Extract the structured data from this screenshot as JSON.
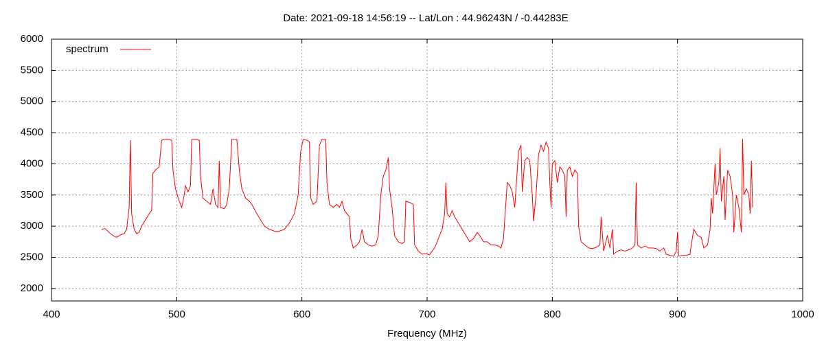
{
  "chart_data": {
    "type": "line",
    "title": "Date: 2021-09-18 14:56:19  --  Lat/Lon : 44.96243N / -0.44283E",
    "xlabel": "Frequency (MHz)",
    "xlim": [
      400,
      1000
    ],
    "xticks": [
      400,
      500,
      600,
      700,
      800,
      900,
      1000
    ],
    "ylim": [
      1800,
      6000
    ],
    "yticks": [
      2000,
      2500,
      3000,
      3500,
      4000,
      4500,
      5000,
      5500,
      6000
    ],
    "grid": true,
    "legend": "top-left",
    "x": [
      440,
      443,
      446,
      449,
      452,
      455,
      458,
      460,
      462,
      463,
      464,
      466,
      468,
      470,
      472,
      475,
      478,
      480,
      481,
      483,
      486,
      488,
      490,
      494,
      496,
      497,
      499,
      502,
      504,
      506,
      507,
      509,
      511,
      512,
      515,
      518,
      519,
      521,
      524,
      527,
      529,
      531,
      533,
      534,
      535,
      538,
      540,
      542,
      544,
      548,
      550,
      552,
      555,
      558,
      560,
      564,
      567,
      570,
      574,
      578,
      582,
      586,
      590,
      594,
      597,
      599,
      601,
      604,
      606,
      607,
      609,
      612,
      614,
      616,
      619,
      620,
      622,
      625,
      628,
      630,
      632,
      634,
      636,
      638,
      639,
      641,
      644,
      646,
      648,
      650,
      653,
      656,
      659,
      661,
      663,
      665,
      667,
      669,
      670,
      672,
      674,
      677,
      680,
      682,
      683,
      686,
      689,
      690,
      693,
      696,
      699,
      702,
      704,
      706,
      709,
      712,
      714,
      715,
      716,
      718,
      720,
      722,
      725,
      728,
      731,
      734,
      737,
      740,
      742,
      745,
      748,
      751,
      754,
      757,
      759,
      761,
      763,
      764,
      766,
      768,
      770,
      771,
      773,
      775,
      776,
      778,
      780,
      782,
      784,
      785,
      787,
      789,
      791,
      793,
      795,
      797,
      798,
      799,
      800,
      802,
      804,
      806,
      808,
      810,
      811,
      812,
      814,
      816,
      818,
      820,
      821,
      823,
      826,
      829,
      832,
      835,
      838,
      839,
      841,
      844,
      846,
      848,
      849,
      852,
      855,
      858,
      861,
      864,
      866,
      867,
      868,
      871,
      874,
      877,
      880,
      883,
      886,
      889,
      891,
      894,
      897,
      899,
      900,
      901,
      904,
      907,
      910,
      911,
      913,
      916,
      919,
      921,
      924,
      926,
      927,
      928,
      930,
      931,
      933,
      934,
      935,
      937,
      938,
      940,
      942,
      944,
      945,
      947,
      949,
      951,
      952,
      953,
      955,
      957,
      958,
      959,
      960
    ],
    "series": [
      {
        "name": "spectrum",
        "color": "#ff0000",
        "values": [
          2950,
          2960,
          2900,
          2850,
          2820,
          2860,
          2880,
          2950,
          3300,
          4380,
          3200,
          2950,
          2880,
          2900,
          3000,
          3100,
          3200,
          3250,
          3850,
          3900,
          3950,
          4380,
          4390,
          4390,
          4380,
          3900,
          3600,
          3400,
          3300,
          3500,
          3650,
          3550,
          3650,
          4390,
          4390,
          4380,
          3800,
          3450,
          3400,
          3350,
          3600,
          3350,
          3300,
          4050,
          3300,
          3280,
          3350,
          3600,
          4390,
          4390,
          3900,
          3600,
          3450,
          3400,
          3350,
          3200,
          3100,
          3000,
          2950,
          2920,
          2920,
          2950,
          3050,
          3200,
          3500,
          4200,
          4390,
          4380,
          4350,
          3450,
          3350,
          3400,
          4300,
          4390,
          4390,
          3700,
          3350,
          3300,
          3350,
          3300,
          3400,
          3250,
          3200,
          3150,
          2800,
          2650,
          2700,
          2750,
          2950,
          2750,
          2700,
          2680,
          2700,
          2850,
          3500,
          3800,
          3900,
          4100,
          3600,
          3300,
          2850,
          2750,
          2720,
          2750,
          3400,
          3380,
          3350,
          2700,
          2600,
          2550,
          2560,
          2540,
          2600,
          2650,
          2800,
          2950,
          3200,
          3700,
          3200,
          3150,
          3250,
          3150,
          3050,
          2950,
          2850,
          2750,
          2800,
          2900,
          2850,
          2750,
          2750,
          2700,
          2700,
          2680,
          2650,
          2800,
          3400,
          3700,
          3650,
          3550,
          3300,
          3600,
          4200,
          4300,
          3550,
          4050,
          4100,
          4050,
          3500,
          3080,
          3500,
          4150,
          4300,
          4200,
          4350,
          4250,
          3700,
          3300,
          4000,
          4050,
          3700,
          3950,
          3900,
          3800,
          3150,
          3900,
          3950,
          3800,
          3900,
          3850,
          3000,
          2750,
          2700,
          2650,
          2640,
          2660,
          2700,
          3150,
          2600,
          2850,
          2650,
          2950,
          2550,
          2600,
          2620,
          2600,
          2620,
          2650,
          2700,
          3700,
          2700,
          2650,
          2680,
          2650,
          2650,
          2640,
          2600,
          2650,
          2550,
          2530,
          2520,
          2600,
          2900,
          2520,
          2530,
          2530,
          2550,
          2700,
          2950,
          2850,
          2820,
          2650,
          2700,
          2950,
          3450,
          3200,
          4000,
          3500,
          3700,
          4250,
          3400,
          3800,
          3100,
          3900,
          3800,
          3500,
          2900,
          3500,
          3300,
          2900,
          4400,
          3500,
          3600,
          3500,
          3200,
          4050,
          3300
        ]
      }
    ]
  }
}
